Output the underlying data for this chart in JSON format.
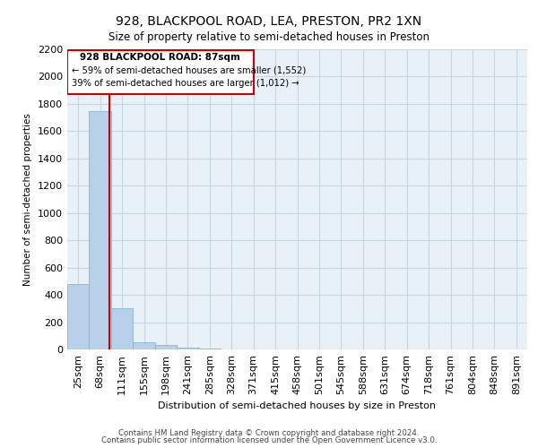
{
  "title1": "928, BLACKPOOL ROAD, LEA, PRESTON, PR2 1XN",
  "title2": "Size of property relative to semi-detached houses in Preston",
  "xlabel": "Distribution of semi-detached houses by size in Preston",
  "ylabel": "Number of semi-detached properties",
  "footer1": "Contains HM Land Registry data © Crown copyright and database right 2024.",
  "footer2": "Contains public sector information licensed under the Open Government Licence v3.0.",
  "categories": [
    "25sqm",
    "68sqm",
    "111sqm",
    "155sqm",
    "198sqm",
    "241sqm",
    "285sqm",
    "328sqm",
    "371sqm",
    "415sqm",
    "458sqm",
    "501sqm",
    "545sqm",
    "588sqm",
    "631sqm",
    "674sqm",
    "718sqm",
    "761sqm",
    "804sqm",
    "848sqm",
    "891sqm"
  ],
  "values": [
    480,
    1750,
    300,
    50,
    30,
    15,
    5,
    0,
    0,
    0,
    0,
    0,
    0,
    0,
    0,
    0,
    0,
    0,
    0,
    0,
    0
  ],
  "bar_color": "#b8d0e8",
  "bar_edge_color": "#88b4d4",
  "annotation_title": "928 BLACKPOOL ROAD: 87sqm",
  "annotation_line1": "← 59% of semi-detached houses are smaller (1,552)",
  "annotation_line2": "39% of semi-detached houses are larger (1,012) →",
  "annotation_box_edge_color": "#cc0000",
  "red_line_color": "#cc0000",
  "ylim_max": 2200,
  "yticks": [
    0,
    200,
    400,
    600,
    800,
    1000,
    1200,
    1400,
    1600,
    1800,
    2000,
    2200
  ],
  "grid_color": "#c8d4e0",
  "bg_color": "#e8f0f8"
}
